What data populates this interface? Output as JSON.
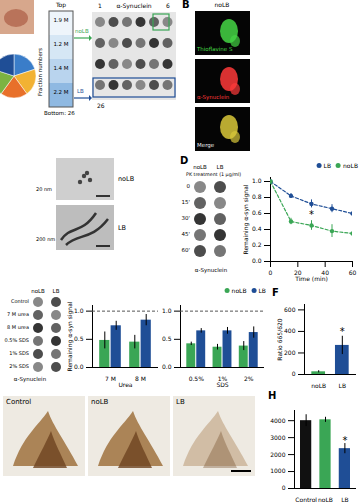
{
  "figure": {
    "A": {
      "tube_top": "Top",
      "tube_bottom": "Bottom: 26",
      "tube_axis": "Fraction numbers",
      "layers": [
        "1.9 M",
        "1.2 M",
        "1.4 M",
        "2.2 M"
      ],
      "fractions": [
        {
          "label": "noLB",
          "color": "#3aa655"
        },
        {
          "label": "LB",
          "color": "#1f4e96"
        }
      ],
      "blot_title": "α-Synuclein",
      "blot_columns": [
        "1",
        "6"
      ],
      "blot_row": "26"
    },
    "B": {
      "letter": "B",
      "title": "noLB",
      "channels": [
        {
          "label": "Thioflavine S",
          "color": "#45d645"
        },
        {
          "label": "α-Synuclein",
          "color": "#ff3a3a"
        },
        {
          "label": "Merge",
          "color": "#f0f0f0"
        }
      ]
    },
    "C": {
      "images": [
        {
          "label": "noLB",
          "scale_bar": "20 nm"
        },
        {
          "label": "LB",
          "scale_bar": "200 nm"
        }
      ]
    },
    "D": {
      "letter": "D",
      "blot_columns": [
        "noLB",
        "LB"
      ],
      "blot_title": "PK treatment (1 μg/ml)",
      "blot_rows": [
        "0",
        "15'",
        "30'",
        "45'",
        "60'"
      ],
      "blot_label": "α-Synuclein"
    },
    "E": {
      "blot_columns": [
        "noLB",
        "LB"
      ],
      "blot_rows": [
        "Control",
        "7 M urea",
        "8 M urea",
        "0.5% SDS",
        "1% SDS",
        "2% SDS"
      ],
      "blot_label": "α-Synuclein"
    },
    "F": {
      "letter": "F"
    },
    "G": {
      "images": [
        "Control",
        "noLB",
        "LB"
      ]
    },
    "H": {
      "letter": "H"
    }
  },
  "chart_data": [
    {
      "type": "line",
      "x": [
        0,
        15,
        30,
        45,
        60
      ],
      "x_label": "Time (min)",
      "y_label": "Remaining α-syn signal",
      "xlim": [
        0,
        60
      ],
      "xticks": [
        0,
        20,
        40,
        60
      ],
      "ylim": [
        0,
        1.05
      ],
      "yticks": [
        {
          "value": 0,
          "label": "0.0"
        },
        {
          "value": 0.2,
          "label": "0.2"
        },
        {
          "value": 0.4,
          "label": "0.4"
        },
        {
          "value": 0.6,
          "label": "0.6"
        },
        {
          "value": 0.8,
          "label": "0.8"
        },
        {
          "value": 1,
          "label": "1.0"
        }
      ],
      "legend": "top-right",
      "line_style": "dashed",
      "marker": "circle",
      "series": [
        {
          "name": "LB",
          "color": "#1f4e96",
          "values": [
            1,
            0.82,
            0.72,
            0.66,
            0.6
          ],
          "errors": [
            0,
            0.03,
            0.05,
            0.05,
            0.05
          ]
        },
        {
          "name": "noLB",
          "color": "#3aa655",
          "values": [
            1,
            0.5,
            0.45,
            0.38,
            0.35
          ],
          "errors": [
            0,
            0.04,
            0.06,
            0.08,
            0.1
          ]
        }
      ],
      "annotations": [
        {
          "text": "*",
          "x": 30,
          "y": 0.58
        }
      ]
    },
    {
      "type": "bar",
      "categories": [
        "7 M",
        "8 M"
      ],
      "x_label": "Urea",
      "y_label": "Remaining α-syn signal",
      "ylim": [
        0,
        1.1
      ],
      "yticks": [
        {
          "value": 0,
          "label": "0.0"
        },
        {
          "value": 0.5,
          "label": "0.5"
        },
        {
          "value": 1,
          "label": "1.0"
        }
      ],
      "baseline": 1,
      "series": [
        {
          "name": "noLB",
          "color": "#3aa655",
          "values": [
            0.48,
            0.45
          ],
          "errors": [
            0.15,
            0.12
          ]
        },
        {
          "name": "LB",
          "color": "#1f4e96",
          "values": [
            0.74,
            0.84
          ],
          "errors": [
            0.08,
            0.1
          ]
        }
      ]
    },
    {
      "type": "bar",
      "categories": [
        "0.5%",
        "1%",
        "2%"
      ],
      "x_label": "SDS",
      "ylim": [
        0,
        1.1
      ],
      "yticks": [
        {
          "value": 0,
          "label": "0.0"
        },
        {
          "value": 0.5,
          "label": "0.5"
        },
        {
          "value": 1,
          "label": "1.0"
        }
      ],
      "baseline": 1,
      "legend": "top-right",
      "series": [
        {
          "name": "noLB",
          "color": "#3aa655",
          "values": [
            0.42,
            0.36,
            0.38
          ],
          "errors": [
            0.03,
            0.05,
            0.08
          ]
        },
        {
          "name": "LB",
          "color": "#1f4e96",
          "values": [
            0.65,
            0.65,
            0.62
          ],
          "errors": [
            0.04,
            0.06,
            0.1
          ]
        }
      ]
    },
    {
      "type": "bar",
      "categories": [
        "noLB",
        "LB"
      ],
      "y_label": "Ratio 665/620",
      "values": [
        25,
        270
      ],
      "errors": [
        10,
        85
      ],
      "colors": [
        "#3aa655",
        "#1f4e96"
      ],
      "ylim": [
        0,
        650
      ],
      "yticks": [
        0,
        200,
        400,
        600
      ],
      "annotations": [
        {
          "text": "*",
          "category": "LB",
          "y": 400
        }
      ]
    },
    {
      "type": "bar",
      "categories": [
        "Control",
        "noLB",
        "LB"
      ],
      "values": [
        4000,
        4050,
        2350
      ],
      "errors": [
        350,
        150,
        300
      ],
      "colors": [
        "#111111",
        "#3aa655",
        "#1f4e96"
      ],
      "ylim": [
        0,
        4600
      ],
      "yticks": [
        0,
        1000,
        2000,
        3000,
        4000
      ],
      "annotations": [
        {
          "text": "*",
          "category": "LB",
          "y": 2800
        }
      ]
    }
  ]
}
